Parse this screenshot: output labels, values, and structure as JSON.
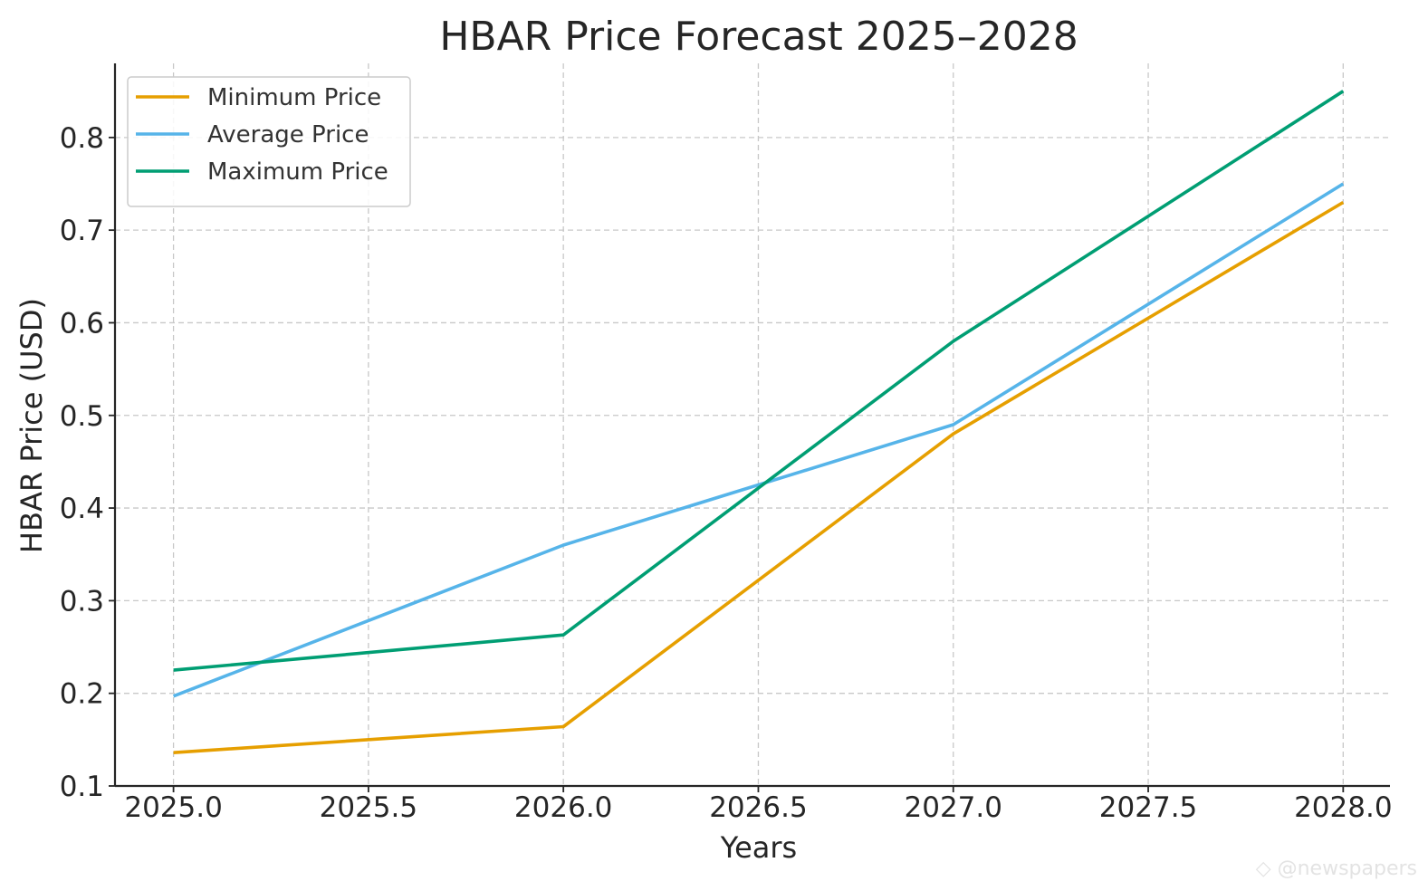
{
  "chart_data": {
    "type": "line",
    "title": "HBAR Price Forecast 2025–2028",
    "xlabel": "Years",
    "ylabel": "HBAR Price (USD)",
    "x": [
      2025,
      2026,
      2027,
      2028
    ],
    "xlim": [
      2024.85,
      2028.12
    ],
    "ylim": [
      0.1,
      0.88
    ],
    "xticks": [
      2025.0,
      2025.5,
      2026.0,
      2026.5,
      2027.0,
      2027.5,
      2028.0
    ],
    "xtick_labels": [
      "2025.0",
      "2025.5",
      "2026.0",
      "2026.5",
      "2027.0",
      "2027.5",
      "2028.0"
    ],
    "yticks": [
      0.1,
      0.2,
      0.3,
      0.4,
      0.5,
      0.6,
      0.7,
      0.8
    ],
    "ytick_labels": [
      "0.1",
      "0.2",
      "0.3",
      "0.4",
      "0.5",
      "0.6",
      "0.7",
      "0.8"
    ],
    "grid": true,
    "legend_position": "top-left",
    "series": [
      {
        "name": "Minimum Price",
        "color": "#E69F00",
        "values": [
          0.136,
          0.164,
          0.48,
          0.73
        ]
      },
      {
        "name": "Average Price",
        "color": "#56B4E9",
        "values": [
          0.197,
          0.36,
          0.49,
          0.75
        ]
      },
      {
        "name": "Maximum Price",
        "color": "#009E73",
        "values": [
          0.225,
          0.263,
          0.58,
          0.85
        ]
      }
    ]
  },
  "watermark": {
    "text": "@newspapers"
  }
}
